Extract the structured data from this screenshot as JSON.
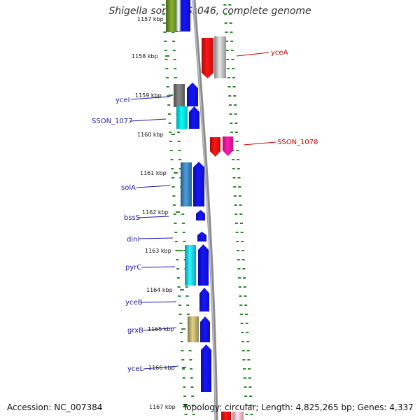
{
  "title": "Shigella sonnei Ss046, complete genome",
  "footer": {
    "accession": "Accession: NC_007384",
    "topology": "Topology: circular; Length: 4,825,265 bp; Genes: 4,337"
  },
  "axis": {
    "partial_top_label": "1157 kbp",
    "ticks": [
      "1158 kbp",
      "1159 kbp",
      "1160 kbp",
      "1161 kbp",
      "1162 kbp",
      "1163 kbp",
      "1164 kbp",
      "1165 kbp",
      "1166 kbp",
      "1167 kbp"
    ]
  },
  "labels": {
    "right": [
      {
        "text": "yceA",
        "color": "#cc0000"
      },
      {
        "text": "SSON_1078",
        "color": "#cc0000"
      }
    ],
    "left": [
      {
        "text": "yceI",
        "color": "#1a1aa6"
      },
      {
        "text": "SSON_1077",
        "color": "#1a1aa6"
      },
      {
        "text": "solA",
        "color": "#1a1aa6"
      },
      {
        "text": "bssS",
        "color": "#1a1aa6"
      },
      {
        "text": "dinI",
        "color": "#1a1aa6"
      },
      {
        "text": "pyrC",
        "color": "#1a1aa6"
      },
      {
        "text": "yceB",
        "color": "#1a1aa6"
      },
      {
        "text": "grxB",
        "color": "#1a1aa6"
      },
      {
        "text": "yceL",
        "color": "#1a1aa6"
      }
    ]
  },
  "colors": {
    "forward_gene": "#1111ee",
    "reverse_gene": "#ee1111",
    "backbone": "#8a8a8a",
    "dots": "#2a8a2a"
  }
}
